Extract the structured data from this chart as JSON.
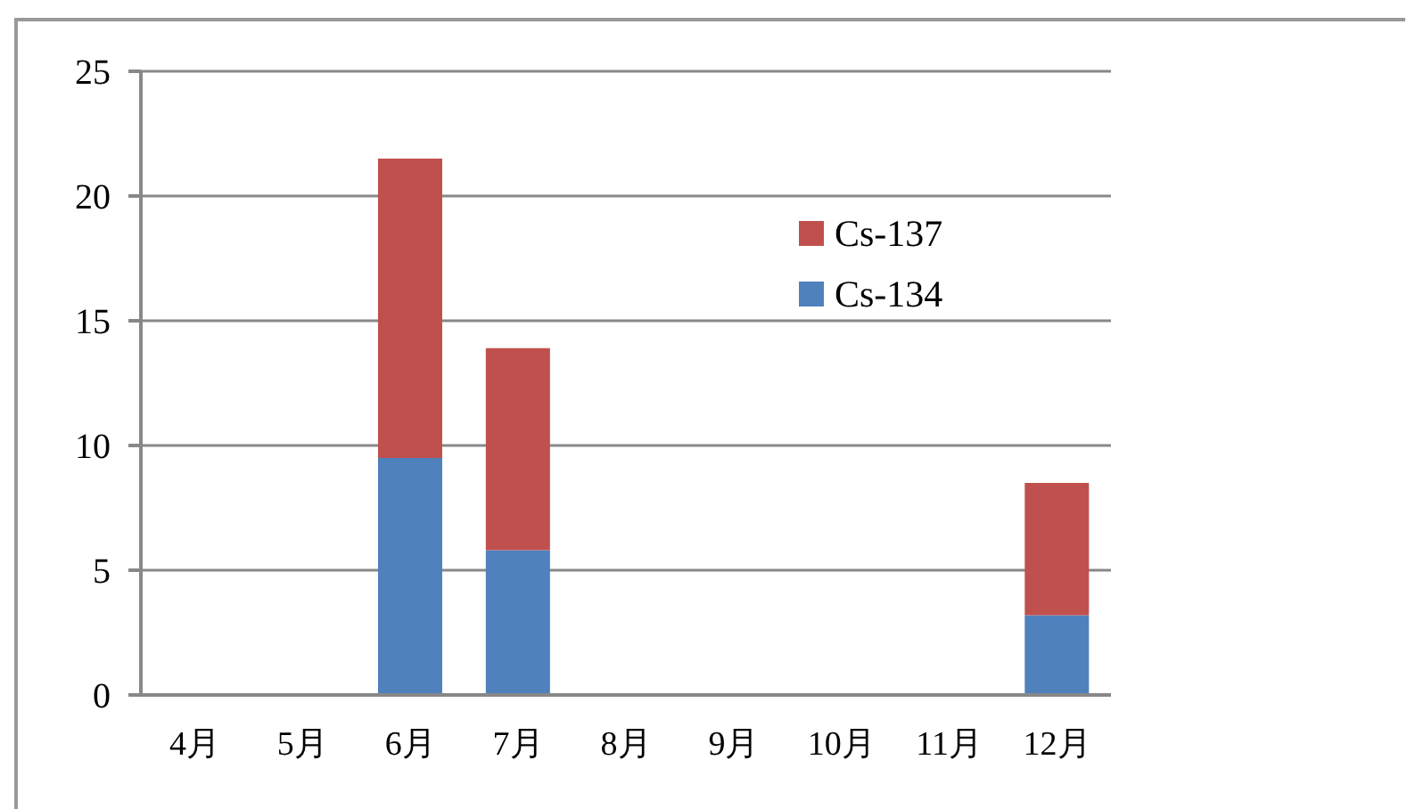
{
  "chart_data": {
    "type": "bar",
    "stacked": true,
    "categories": [
      "4月",
      "5月",
      "6月",
      "7月",
      "8月",
      "9月",
      "10月",
      "11月",
      "12月"
    ],
    "series": [
      {
        "name": "Cs-134",
        "color": "#4f81bd",
        "values": [
          null,
          null,
          9.5,
          5.8,
          null,
          null,
          null,
          null,
          3.2
        ]
      },
      {
        "name": "Cs-137",
        "color": "#c0504d",
        "values": [
          null,
          null,
          12.0,
          8.1,
          null,
          null,
          null,
          null,
          5.3
        ]
      }
    ],
    "ylim": [
      0,
      25
    ],
    "yticks": [
      0,
      5,
      10,
      15,
      20,
      25
    ],
    "grid": "y",
    "legend": "top right"
  }
}
